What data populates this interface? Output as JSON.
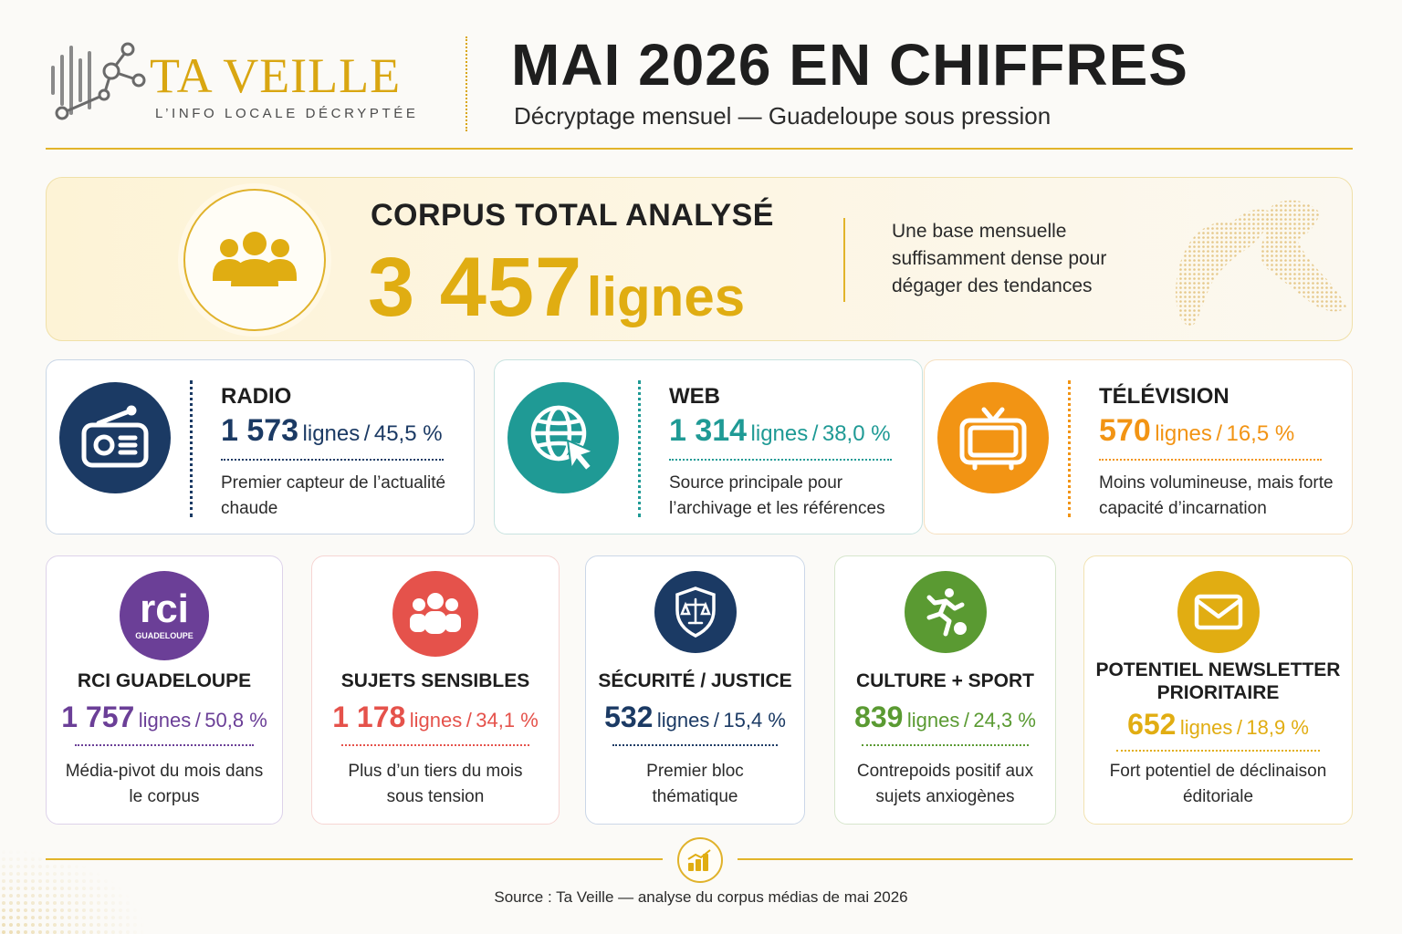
{
  "brand": {
    "name": "TA VEILLE",
    "tagline": "L’INFO LOCALE DÉCRYPTÉE",
    "color": "#d9a611"
  },
  "header": {
    "title": "MAI 2026 EN CHIFFRES",
    "subtitle": "Décryptage mensuel — Guadeloupe sous pression"
  },
  "corpus": {
    "label": "CORPUS TOTAL ANALYSÉ",
    "number": "3 457",
    "unit": "lignes",
    "note": "Une base mensuelle suffisamment dense pour dégager des tendances",
    "icon": "people-group-icon"
  },
  "media": [
    {
      "name": "RADIO",
      "value": "1 573",
      "unit": "lignes",
      "sep": "/",
      "percent": "45,5 %",
      "desc": "Premier capteur de l’actualité chaude",
      "color": "#1b3a64",
      "icon": "radio-icon"
    },
    {
      "name": "WEB",
      "value": "1 314",
      "unit": "lignes",
      "sep": "/",
      "percent": "38,0 %",
      "desc": "Source principale pour l’archivage et les références",
      "color": "#1f9a95",
      "icon": "globe-cursor-icon"
    },
    {
      "name": "TÉLÉVISION",
      "value": "570",
      "unit": "lignes",
      "sep": "/",
      "percent": "16,5 %",
      "desc": "Moins volumineuse, mais forte capacité d’incarnation",
      "color": "#f29414",
      "icon": "television-icon"
    }
  ],
  "topics": [
    {
      "name": "RCI GUADELOUPE",
      "logo_text": "rci",
      "logo_sub": "GUADELOUPE",
      "value": "1 757",
      "unit": "lignes",
      "sep": "/",
      "percent": "50,8 %",
      "desc": "Média-pivot du mois dans le corpus",
      "color": "#6b3f97",
      "icon": "rci-logo-icon"
    },
    {
      "name": "SUJETS SENSIBLES",
      "value": "1 178",
      "unit": "lignes",
      "sep": "/",
      "percent": "34,1 %",
      "desc": "Plus d’un tiers du mois sous tension",
      "color": "#e5524b",
      "icon": "crowd-icon"
    },
    {
      "name": "SÉCURITÉ / JUSTICE",
      "value": "532",
      "unit": "lignes",
      "sep": "/",
      "percent": "15,4 %",
      "desc": "Premier bloc thématique",
      "color": "#1b3a64",
      "icon": "shield-scales-icon"
    },
    {
      "name": "CULTURE + SPORT",
      "value": "839",
      "unit": "lignes",
      "sep": "/",
      "percent": "24,3 %",
      "desc": "Contrepoids positif aux sujets anxiogènes",
      "color": "#5a9a32",
      "icon": "football-player-icon"
    },
    {
      "name": "POTENTIEL NEWSLETTER PRIORITAIRE",
      "value": "652",
      "unit": "lignes",
      "sep": "/",
      "percent": "18,9 %",
      "desc": "Fort potentiel de déclinaison éditoriale",
      "color": "#e1ad12",
      "icon": "envelope-icon"
    }
  ],
  "footer": {
    "source": "Source : Ta Veille — analyse du corpus médias de mai 2026",
    "icon": "bar-chart-icon"
  }
}
